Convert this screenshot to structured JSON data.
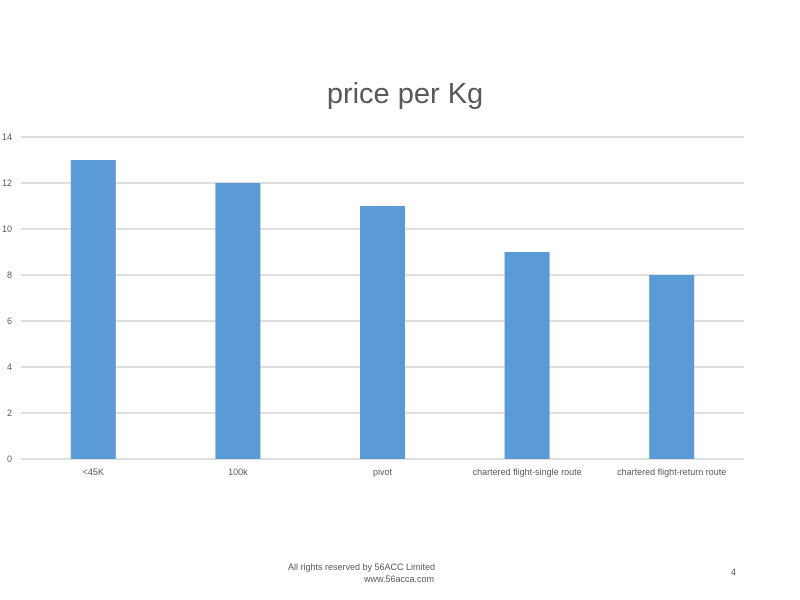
{
  "chart_data": {
    "type": "bar",
    "title": "price per Kg",
    "categories": [
      "<45K",
      "100k",
      "pivot",
      "chartered flight-single route",
      "chartered flight-return route"
    ],
    "series": [
      {
        "values": [
          13,
          12,
          11,
          9,
          8
        ]
      }
    ],
    "xlabel": "",
    "ylabel": "",
    "ylim": [
      0,
      14
    ],
    "yticks": [
      0,
      2,
      4,
      6,
      8,
      10,
      12,
      14
    ],
    "grid": true,
    "legend": "none",
    "bar_color": "#5b9bd5",
    "grid_color": "#bfbfbf"
  },
  "footer": {
    "line1": "All rights reserved by 56ACC Limited",
    "line2": "www.56acca.com"
  },
  "page_number": "4"
}
